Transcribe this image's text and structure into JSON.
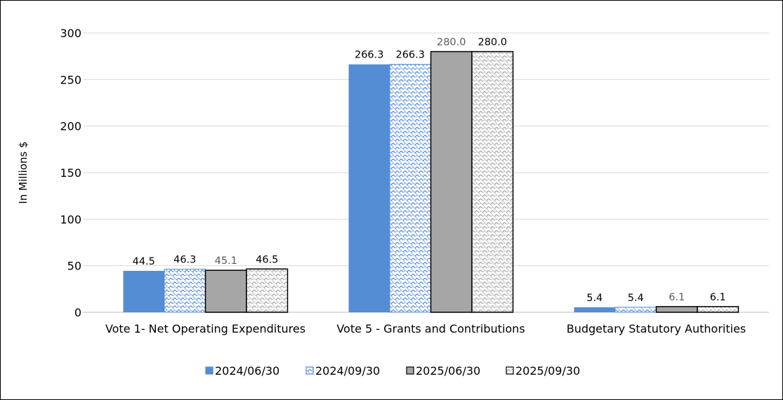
{
  "chart_data": {
    "type": "bar",
    "title": "",
    "xlabel": "",
    "ylabel": "In Millions $",
    "ylim": [
      0,
      300
    ],
    "yticks": [
      0,
      50,
      100,
      150,
      200,
      250,
      300
    ],
    "grid": true,
    "legend_position": "bottom",
    "categories": [
      "Vote 1- Net Operating Expenditures",
      "Vote 5 - Grants and Contributions",
      "Budgetary Statutory Authorities"
    ],
    "series": [
      {
        "name": "2024/06/30",
        "values": [
          44.5,
          266.3,
          5.4
        ],
        "labels": [
          "44.5",
          "266.3",
          "5.4"
        ],
        "color": "#548dd4",
        "fill": "solid",
        "label_color": "#000000"
      },
      {
        "name": "2024/09/30",
        "values": [
          46.3,
          266.3,
          5.4
        ],
        "labels": [
          "46.3",
          "266.3",
          "5.4"
        ],
        "color": "#548dd4",
        "fill": "hatched",
        "label_color": "#000000"
      },
      {
        "name": "2025/06/30",
        "values": [
          45.1,
          280.0,
          6.1
        ],
        "labels": [
          "45.1",
          "280.0",
          "6.1"
        ],
        "color": "#a6a6a6",
        "fill": "solid-outlined",
        "label_color": "#595959"
      },
      {
        "name": "2025/09/30",
        "values": [
          46.5,
          280.0,
          6.1
        ],
        "labels": [
          "46.5",
          "280.0",
          "6.1"
        ],
        "color": "#a6a6a6",
        "fill": "hatched-outlined",
        "label_color": "#000000"
      }
    ]
  }
}
